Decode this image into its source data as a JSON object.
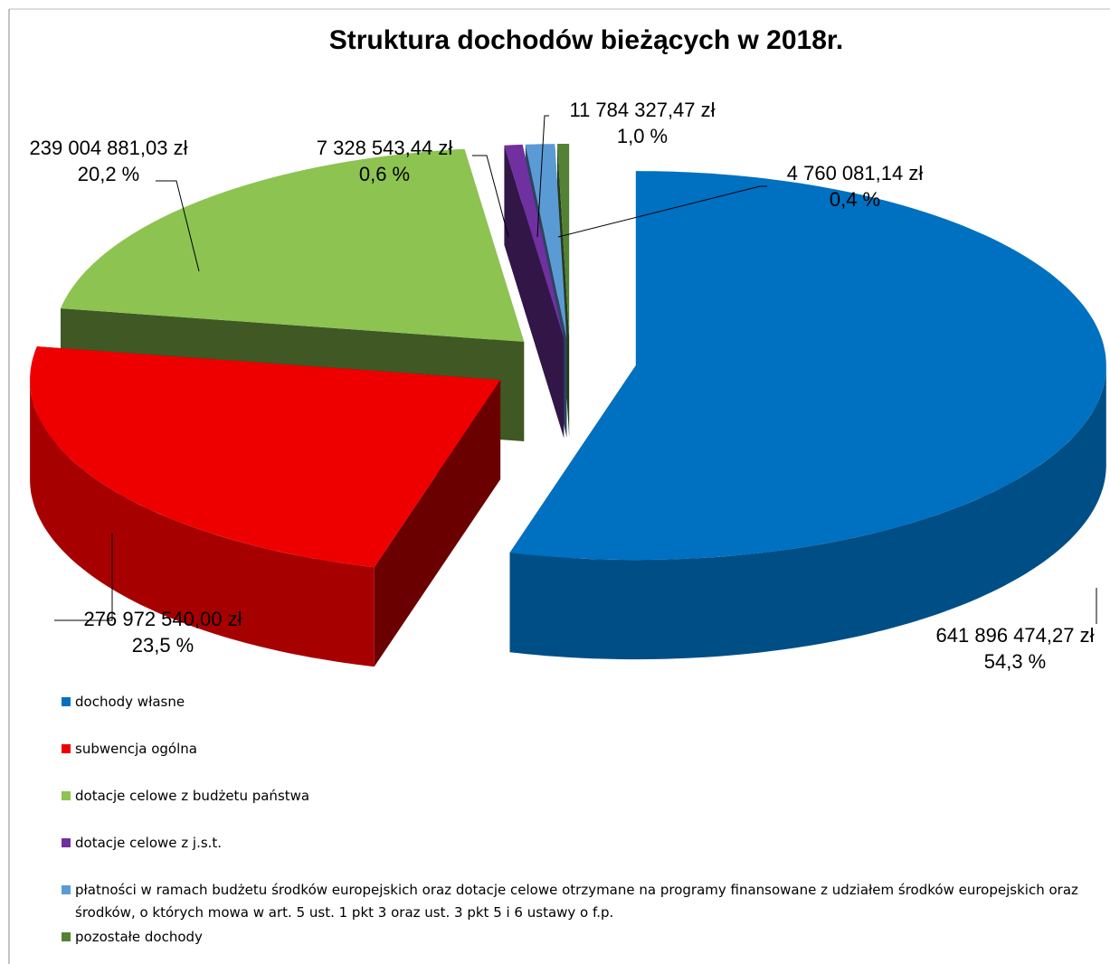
{
  "chart_data": {
    "type": "pie3d",
    "title": "Struktura dochodów bieżących w 2018r.",
    "categories": [
      "dochody własne",
      "subwencja ogólna",
      "dotacje celowe z budżetu państwa",
      "dotacje celowe z j.s.t.",
      "płatności w ramach budżetu środków europejskich oraz dotacje celowe otrzymane na programy finansowane z udziałem środków europejskich oraz środków, o których mowa w art. 5 ust. 1 pkt 3 oraz ust. 3 pkt 5 i 6 ustawy o f.p.",
      "pozostałe dochody"
    ],
    "values": [
      641896474.27,
      276972540.0,
      239004881.03,
      7328543.44,
      11784327.47,
      4760081.14
    ],
    "value_labels": [
      "641 896 474,27 zł",
      "276 972 540,00 zł",
      "239 004 881,03 zł",
      "7 328 543,44 zł",
      "11 784 327,47 zł",
      "4 760 081,14 zł"
    ],
    "percent_labels": [
      "54,3 %",
      "23,5 %",
      "20,2 %",
      "0,6 %",
      "1,0 %",
      "0,4 %"
    ],
    "colors": [
      "#0070c0",
      "#ee0000",
      "#8dc351",
      "#7030a0",
      "#5b9bd5",
      "#548235"
    ],
    "legend": "bottom"
  }
}
